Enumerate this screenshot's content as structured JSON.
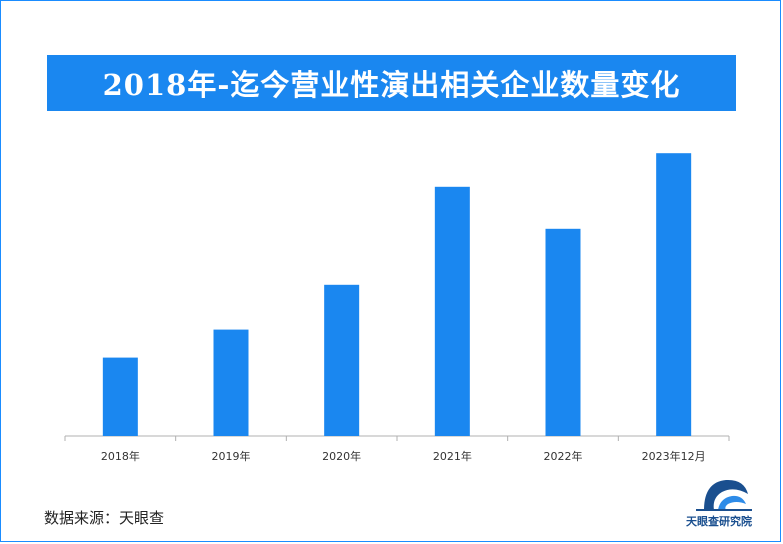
{
  "title": "2018年-迄今营业性演出相关企业数量变化",
  "source": "数据来源：天眼查",
  "logo": {
    "text": "天眼查研究院",
    "icon": "tianyancha-logo-icon"
  },
  "colors": {
    "bar": "#1a87f0",
    "title_bg": "#1a87f0",
    "border": "#1a8cff",
    "axis": "#b0b0b0"
  },
  "chart_data": {
    "type": "bar",
    "title": "2018年-迄今营业性演出相关企业数量变化",
    "categories": [
      "2018年",
      "2019年",
      "2020年",
      "2021年",
      "2022年",
      "2023年12月"
    ],
    "values": [
      28,
      38,
      54,
      89,
      74,
      101
    ],
    "ylim": [
      0,
      110
    ],
    "grid": false,
    "legend": "none"
  }
}
